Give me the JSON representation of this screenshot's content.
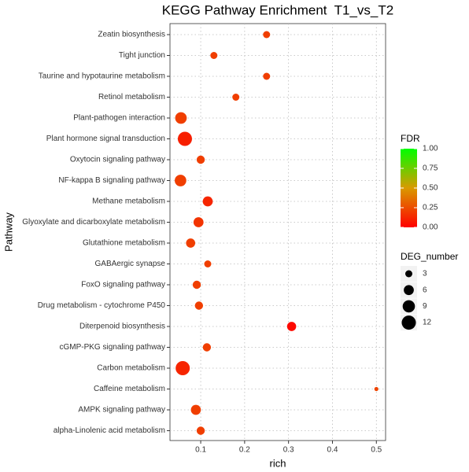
{
  "chart_data": {
    "type": "scatter",
    "title": "KEGG Pathway Enrichment  T1_vs_T2",
    "x_label": "rich",
    "y_label": "Pathway",
    "categories": [
      "Zeatin biosynthesis",
      "Tight junction",
      "Taurine and hypotaurine metabolism",
      "Retinol metabolism",
      "Plant-pathogen interaction",
      "Plant hormone signal transduction",
      "Oxytocin signaling pathway",
      "NF-kappa B signaling pathway",
      "Methane metabolism",
      "Glyoxylate and dicarboxylate metabolism",
      "Glutathione metabolism",
      "GABAergic synapse",
      "FoxO signaling pathway",
      "Drug metabolism - cytochrome P450",
      "Diterpenoid biosynthesis",
      "cGMP-PKG signaling pathway",
      "Carbon metabolism",
      "Caffeine metabolism",
      "AMPK signaling pathway",
      "alpha-Linolenic acid metabolism"
    ],
    "values": [
      0.25,
      0.13,
      0.25,
      0.18,
      0.055,
      0.064,
      0.1,
      0.054,
      0.116,
      0.095,
      0.077,
      0.116,
      0.091,
      0.096,
      0.307,
      0.114,
      0.059,
      0.5,
      0.089,
      0.1
    ],
    "color_values": [
      0.2,
      0.2,
      0.2,
      0.2,
      0.2,
      0.1,
      0.2,
      0.2,
      0.12,
      0.17,
      0.2,
      0.2,
      0.2,
      0.2,
      0.03,
      0.2,
      0.12,
      0.22,
      0.2,
      0.2
    ],
    "size_values": [
      3,
      3,
      3,
      3,
      8,
      12,
      4,
      8,
      6,
      6,
      5,
      3,
      4,
      4,
      5,
      4,
      12,
      1,
      6,
      4
    ],
    "xlim": [
      0.03,
      0.521
    ],
    "xticks": [
      0.1,
      0.2,
      0.3,
      0.4,
      0.5
    ],
    "grid": true,
    "color_legend_title": "FDR",
    "color_lim": [
      0,
      1
    ],
    "color_ticks": [
      {
        "value": 0,
        "label": "0.00"
      },
      {
        "value": 0.25,
        "label": "0.25"
      },
      {
        "value": 0.5,
        "label": "0.50"
      },
      {
        "value": 0.75,
        "label": "0.75"
      },
      {
        "value": 1,
        "label": "1.00"
      }
    ],
    "color_stops": [
      "#ff0000",
      "#d99a00",
      "#00ff00"
    ],
    "size_legend_title": "DEG_number",
    "size_legend": [
      3,
      6,
      9,
      12
    ]
  }
}
